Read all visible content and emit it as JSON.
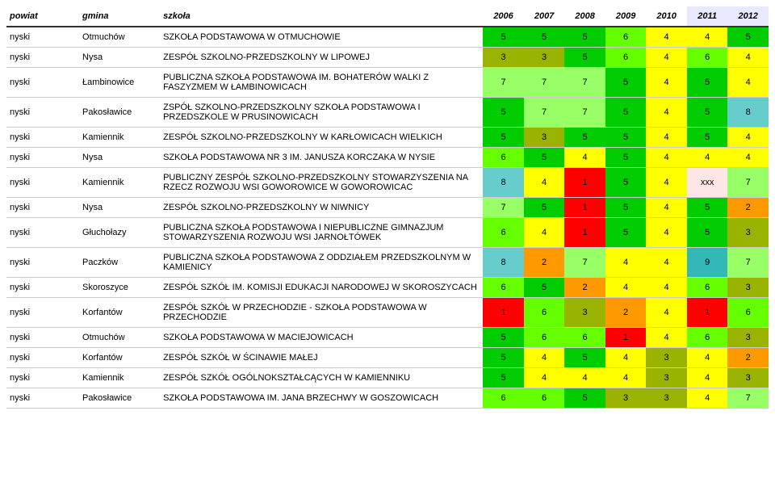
{
  "colors": {
    "1_red": "#ff0000",
    "2_orange": "#ff9900",
    "3_olive": "#99b300",
    "4_yellow": "#ffff00",
    "5_green": "#00cc00",
    "6_lime": "#66ff00",
    "7_lightgreen": "#99ff66",
    "8_cyan": "#66cccc",
    "9_teal": "#33b8b8",
    "xxx_lpink": "#ffe6e6",
    "col2011_head": "#e8e8ff",
    "col2012_head": "#e8e8ff"
  },
  "headers": {
    "powiat": "powiat",
    "gmina": "gmina",
    "szkola": "szkoła",
    "y2006": "2006",
    "y2007": "2007",
    "y2008": "2008",
    "y2009": "2009",
    "y2010": "2010",
    "y2011": "2011",
    "y2012": "2012"
  },
  "rows": [
    {
      "powiat": "nyski",
      "gmina": "Otmuchów",
      "szkola": "SZKOŁA PODSTAWOWA W OTMUCHOWIE",
      "v": [
        "5",
        "5",
        "5",
        "6",
        "4",
        "4",
        "5"
      ]
    },
    {
      "powiat": "nyski",
      "gmina": "Nysa",
      "szkola": "ZESPÓŁ SZKOLNO-PRZEDSZKOLNY W LIPOWEJ",
      "v": [
        "3",
        "3",
        "5",
        "6",
        "4",
        "6",
        "4"
      ]
    },
    {
      "powiat": "nyski",
      "gmina": "Łambinowice",
      "szkola": "PUBLICZNA SZKOŁA PODSTAWOWA IM. BOHATERÓW WALKI Z FASZYZMEM W ŁAMBINOWICACH",
      "v": [
        "7",
        "7",
        "7",
        "5",
        "4",
        "5",
        "4"
      ]
    },
    {
      "powiat": "nyski",
      "gmina": "Pakosławice",
      "szkola": "ZSPÓŁ SZKOLNO-PRZEDSZKOLNY SZKOŁA PODSTAWOWA I PRZEDSZKOLE W PRUSINOWICACH",
      "v": [
        "5",
        "7",
        "7",
        "5",
        "4",
        "5",
        "8"
      ]
    },
    {
      "powiat": "nyski",
      "gmina": "Kamiennik",
      "szkola": "ZESPÓŁ SZKOLNO-PRZEDSZKOLNY W KARŁOWICACH WIELKICH",
      "v": [
        "5",
        "3",
        "5",
        "5",
        "4",
        "5",
        "4"
      ]
    },
    {
      "powiat": "nyski",
      "gmina": "Nysa",
      "szkola": "SZKOŁA PODSTAWOWA NR 3 IM. JANUSZA KORCZAKA W NYSIE",
      "v": [
        "6",
        "5",
        "4",
        "5",
        "4",
        "4",
        "4"
      ]
    },
    {
      "powiat": "nyski",
      "gmina": "Kamiennik",
      "szkola": "PUBLICZNY ZESPÓŁ SZKOLNO-PRZEDSZKOLNY STOWARZYSZENIA NA RZECZ ROZWOJU WSI GOWOROWICE W GOWOROWICAC",
      "v": [
        "8",
        "4",
        "1",
        "5",
        "4",
        "xxx",
        "7"
      ]
    },
    {
      "powiat": "nyski",
      "gmina": "Nysa",
      "szkola": "ZESPÓŁ SZKOLNO-PRZEDSZKOLNY W NIWNICY",
      "v": [
        "7",
        "5",
        "1",
        "5",
        "4",
        "5",
        "2"
      ]
    },
    {
      "powiat": "nyski",
      "gmina": "Głuchołazy",
      "szkola": "PUBLICZNA SZKOŁA PODSTAWOWA I NIEPUBLICZNE GIMNAZJUM STOWARZYSZENIA ROZWOJU WSI JARNOŁTÓWEK",
      "v": [
        "6",
        "4",
        "1",
        "5",
        "4",
        "5",
        "3"
      ]
    },
    {
      "powiat": "nyski",
      "gmina": "Paczków",
      "szkola": "PUBLICZNA SZKOŁA PODSTAWOWA Z ODDZIAŁEM PRZEDSZKOLNYM W KAMIENICY",
      "v": [
        "8",
        "2",
        "7",
        "4",
        "4",
        "9",
        "7"
      ]
    },
    {
      "powiat": "nyski",
      "gmina": "Skoroszyce",
      "szkola": "ZESPÓŁ SZKÓŁ IM. KOMISJI EDUKACJI NARODOWEJ W SKOROSZYCACH",
      "v": [
        "6",
        "5",
        "2",
        "4",
        "4",
        "6",
        "3"
      ]
    },
    {
      "powiat": "nyski",
      "gmina": "Korfantów",
      "szkola": "ZESPÓŁ SZKÓŁ W PRZECHODZIE - SZKOŁA PODSTAWOWA W PRZECHODZIE",
      "v": [
        "1",
        "6",
        "3",
        "2",
        "4",
        "1",
        "6"
      ]
    },
    {
      "powiat": "nyski",
      "gmina": "Otmuchów",
      "szkola": "SZKOŁA PODSTAWOWA W MACIEJOWICACH",
      "v": [
        "5",
        "6",
        "6",
        "1",
        "4",
        "6",
        "3"
      ]
    },
    {
      "powiat": "nyski",
      "gmina": "Korfantów",
      "szkola": "ZESPÓŁ SZKÓŁ W ŚCINAWIE MAŁEJ",
      "v": [
        "5",
        "4",
        "5",
        "4",
        "3",
        "4",
        "2"
      ]
    },
    {
      "powiat": "nyski",
      "gmina": "Kamiennik",
      "szkola": "ZESPÓŁ SZKÓŁ OGÓLNOKSZTAŁCĄCYCH W KAMIENNIKU",
      "v": [
        "5",
        "4",
        "4",
        "4",
        "3",
        "4",
        "3"
      ]
    },
    {
      "powiat": "nyski",
      "gmina": "Pakosławice",
      "szkola": "SZKOŁA PODSTAWOWA IM. JANA BRZECHWY W GOSZOWICACH",
      "v": [
        "6",
        "6",
        "5",
        "3",
        "3",
        "4",
        "7"
      ]
    }
  ]
}
